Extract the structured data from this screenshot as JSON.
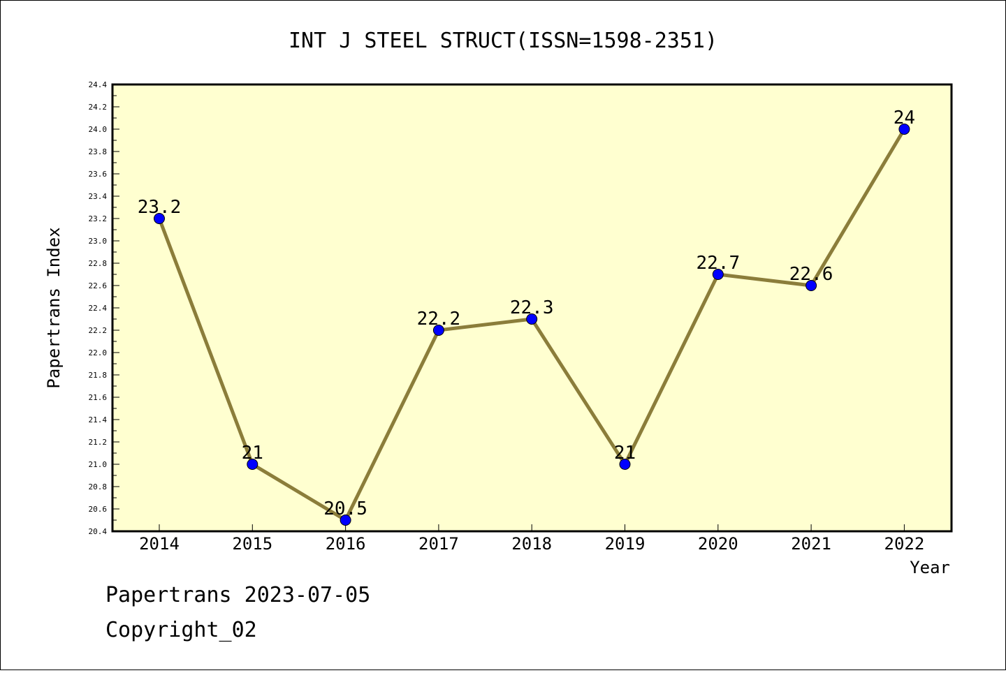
{
  "chart_data": {
    "type": "line",
    "title": "INT J STEEL STRUCT(ISSN=1598-2351)",
    "xlabel": "Year",
    "ylabel": "Papertrans Index",
    "categories": [
      "2014",
      "2015",
      "2016",
      "2017",
      "2018",
      "2019",
      "2020",
      "2021",
      "2022"
    ],
    "series": [
      {
        "values": [
          23.2,
          21,
          20.5,
          22.2,
          22.3,
          21,
          22.7,
          22.6,
          24
        ]
      }
    ],
    "data_labels": [
      "23.2",
      "21",
      "20.5",
      "22.2",
      "22.3",
      "21",
      "22.7",
      "22.6",
      "24"
    ],
    "ylim": [
      20.4,
      24.4
    ],
    "yticks": [
      "20.4",
      "20.6",
      "20.8",
      "21.0",
      "21.2",
      "21.4",
      "21.6",
      "21.8",
      "22.0",
      "22.2",
      "22.4",
      "22.6",
      "22.8",
      "23.0",
      "23.2",
      "23.4",
      "23.6",
      "23.8",
      "24.0",
      "24.2",
      "24.4"
    ],
    "grid": false,
    "colors": {
      "plot_background": "#ffffd0",
      "line": "#8b7d3a",
      "marker": "#0000ff"
    }
  },
  "footer": {
    "line1": "Papertrans 2023-07-05",
    "line2": "Copyright_02"
  }
}
